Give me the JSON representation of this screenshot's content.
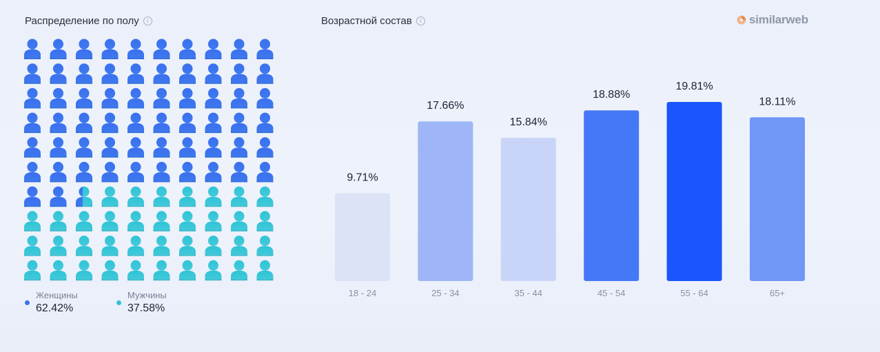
{
  "gender": {
    "title": "Распределение по полу",
    "women_label": "Женщины",
    "women_value": "62.42%",
    "men_label": "Мужчины",
    "men_value": "37.58%",
    "colors": {
      "women": "#3d6ff0",
      "men": "#2ec4d6"
    }
  },
  "age": {
    "title": "Возрастной состав"
  },
  "brand": {
    "logo_text": "similarweb",
    "logo_icon": "similarweb-logo-icon"
  },
  "chart_data": [
    {
      "type": "pictograph",
      "title": "Распределение по полу",
      "series": [
        {
          "name": "Женщины",
          "value": 62.42,
          "label": "62.42%",
          "color": "#3d6ff0"
        },
        {
          "name": "Мужчины",
          "value": 37.58,
          "label": "37.58%",
          "color": "#2ec4d6"
        }
      ],
      "icon": "person-icon",
      "grid": "10x10"
    },
    {
      "type": "bar",
      "title": "Возрастной состав",
      "categories": [
        "18 - 24",
        "25 - 34",
        "35 - 44",
        "45 - 54",
        "55 - 64",
        "65+"
      ],
      "values": [
        9.71,
        17.66,
        15.84,
        18.88,
        19.81,
        18.11
      ],
      "value_labels": [
        "9.71%",
        "17.66%",
        "15.84%",
        "18.88%",
        "19.81%",
        "18.11%"
      ],
      "colors": [
        "#dde3f7",
        "#9eb6f7",
        "#c9d5f8",
        "#4578f6",
        "#1a56fc",
        "#7096f6"
      ],
      "ylim": [
        0,
        19.81
      ],
      "grid": false,
      "legend": "none"
    }
  ]
}
